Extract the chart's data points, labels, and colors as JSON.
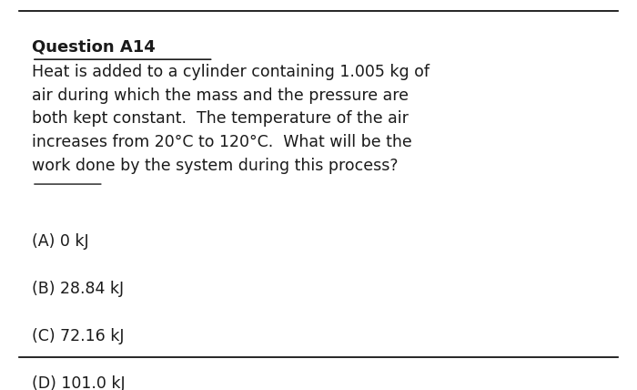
{
  "title": "Question A14",
  "body_text": "Heat is added to a cylinder containing 1.005 kg of\nair during which the mass and the pressure are\nboth kept constant.  The temperature of the air\nincreases from 20°C to 120°C.  What will be the\nwork done by the system during this process?",
  "underline_word": "work done",
  "options": [
    "(A) 0 kJ",
    "(B) 28.84 kJ",
    "(C) 72.16 kJ",
    "(D) 101.0 kJ"
  ],
  "bg_color": "#ffffff",
  "text_color": "#1a1a1a",
  "font_size_title": 13,
  "font_size_body": 12.5,
  "font_size_options": 12.5
}
